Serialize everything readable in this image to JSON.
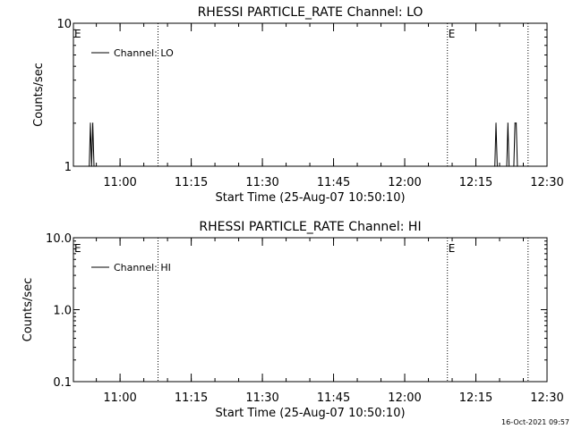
{
  "footer_timestamp": "16-Oct-2021 09:57",
  "chart_data": [
    {
      "type": "line",
      "title": "RHESSI PARTICLE_RATE Channel: LO",
      "xlabel": "Start Time (25-Aug-07 10:50:10)",
      "ylabel": "Counts/sec",
      "yscale": "log",
      "ylim": [
        1,
        10
      ],
      "ytick_values": [
        1,
        10
      ],
      "ytick_labels": [
        "1",
        "10"
      ],
      "xlim": [
        "10:50:10",
        "12:30"
      ],
      "xtick_values": [
        "11:00",
        "11:15",
        "11:30",
        "11:45",
        "12:00",
        "12:15",
        "12:30"
      ],
      "xtick_labels": [
        "11:00",
        "11:15",
        "11:30",
        "11:45",
        "12:00",
        "12:15",
        "12:30"
      ],
      "vertical_lines": [
        "11:08",
        "12:09",
        "12:26"
      ],
      "markers": [
        {
          "text": "E",
          "x": "10:50:10"
        },
        {
          "text": "E",
          "x": "12:09"
        }
      ],
      "legend_position": "top-left",
      "series": [
        {
          "name": "Channel: LO",
          "x": [
            "10:53:30",
            "10:53:45",
            "10:54:00",
            "10:54:15",
            "10:54:30",
            "10:54:45",
            "12:19:00",
            "12:19:15",
            "12:19:30",
            "12:21:30",
            "12:21:45",
            "12:22:00",
            "12:23:00",
            "12:23:15",
            "12:23:30",
            "12:23:45"
          ],
          "values": [
            1,
            2,
            1,
            2,
            1,
            1,
            1,
            2,
            1,
            1,
            2,
            1,
            1,
            2,
            2,
            1
          ]
        }
      ]
    },
    {
      "type": "line",
      "title": "RHESSI PARTICLE_RATE Channel: HI",
      "xlabel": "Start Time (25-Aug-07 10:50:10)",
      "ylabel": "Counts/sec",
      "yscale": "log",
      "ylim": [
        0.1,
        10
      ],
      "ytick_values": [
        0.1,
        1,
        10
      ],
      "ytick_labels": [
        "0.1",
        "1.0",
        "10.0"
      ],
      "xlim": [
        "10:50:10",
        "12:30"
      ],
      "xtick_values": [
        "11:00",
        "11:15",
        "11:30",
        "11:45",
        "12:00",
        "12:15",
        "12:30"
      ],
      "xtick_labels": [
        "11:00",
        "11:15",
        "11:30",
        "11:45",
        "12:00",
        "12:15",
        "12:30"
      ],
      "vertical_lines": [
        "11:08",
        "12:09",
        "12:26"
      ],
      "markers": [
        {
          "text": "E",
          "x": "10:50:10"
        },
        {
          "text": "E",
          "x": "12:09"
        }
      ],
      "legend_position": "top-left",
      "series": [
        {
          "name": "Channel: HI",
          "x": [],
          "values": []
        }
      ]
    }
  ]
}
